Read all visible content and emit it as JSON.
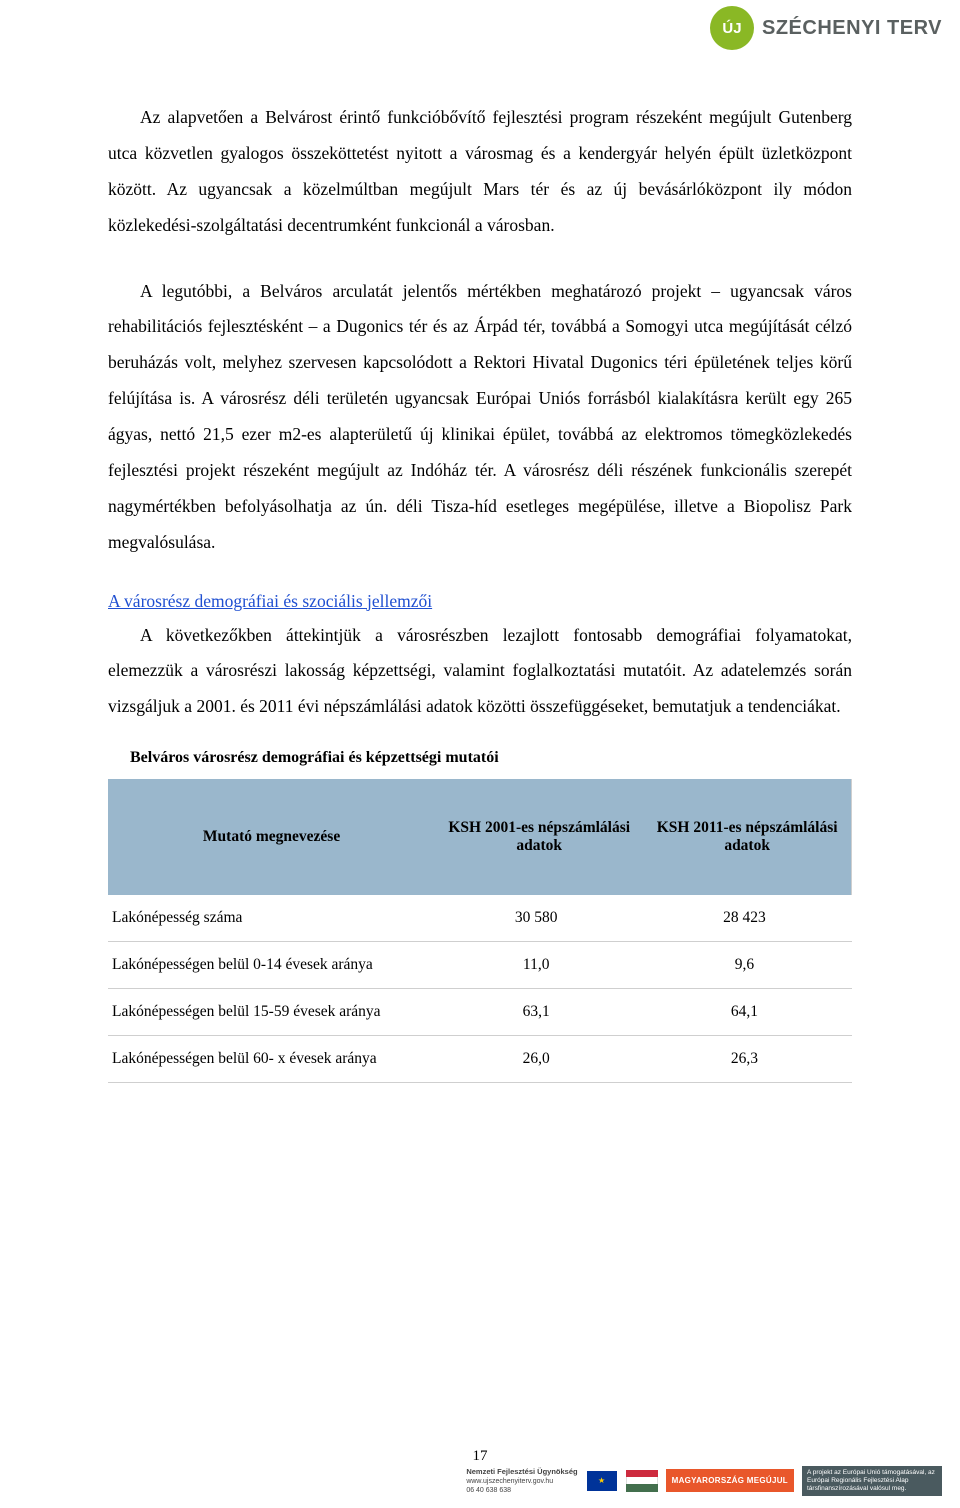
{
  "logo": {
    "badge_text": "ÚJ",
    "brand_text": "SZÉCHENYI TERV"
  },
  "paragraphs": {
    "p1": "Az alapvetően a Belvárost érintő funkcióbővítő fejlesztési program részeként megújult Gutenberg utca közvetlen gyalogos összeköttetést nyitott a városmag és a kendergyár helyén épült üzletközpont között. Az ugyancsak a közelmúltban megújult Mars tér és az új bevásárlóközpont ily módon közlekedési-szolgáltatási decentrumként funkcionál a városban.",
    "p2": "A legutóbbi, a Belváros arculatát jelentős mértékben meghatározó projekt – ugyancsak város rehabilitációs fejlesztésként – a Dugonics tér és az Árpád tér, továbbá a Somogyi utca megújítását célzó beruházás volt, melyhez szervesen kapcsolódott a Rektori Hivatal Dugonics téri épületének teljes körű felújítása is. A városrész déli területén ugyancsak Európai Uniós forrásból kialakításra került egy 265 ágyas, nettó 21,5 ezer m2-es alapterületű új klinikai épület, továbbá az elektromos tömegközlekedés fejlesztési projekt részeként megújult az Indóház tér. A városrész déli részének funkcionális szerepét nagymértékben befolyásolhatja az ún. déli Tisza-híd esetleges megépülése, illetve a Biopolisz Park megvalósulása."
  },
  "section_heading": "A városrész demográfiai és szociális jellemzői",
  "paragraph_after_heading": "A következőkben áttekintjük a városrészben lezajlott fontosabb demográfiai folyamatokat, elemezzük a városrészi lakosság képzettségi, valamint foglalkoztatási mutatóit. Az adatelemzés során vizsgáljuk a 2001. és 2011 évi népszámlálási adatok közötti összefüggéseket, bemutatjuk a tendenciákat.",
  "table": {
    "title": "Belváros városrész demográfiai és képzettségi mutatói",
    "header_bg": "#9ab7cc",
    "border_color": "#cfcfcf",
    "columns": [
      "Mutató megnevezése",
      "KSH 2001-es népszámlálási adatok",
      "KSH 2011-es népszámlálási adatok"
    ],
    "rows": [
      [
        "Lakónépesség száma",
        "30 580",
        "28 423"
      ],
      [
        "Lakónépességen belül 0-14 évesek aránya",
        "11,0",
        "9,6"
      ],
      [
        "Lakónépességen belül 15-59 évesek aránya",
        "63,1",
        "64,1"
      ],
      [
        "Lakónépességen belül 60- x évesek aránya",
        "26,0",
        "26,3"
      ]
    ]
  },
  "page_number": "17",
  "footer": {
    "agency_line1": "Nemzeti Fejlesztési Ügynökség",
    "agency_line2": "www.ujszechenyiterv.gov.hu",
    "agency_line3": "06 40 638 638",
    "mo_badge": "MAGYARORSZÁG MEGÚJUL",
    "eu_text": "A projekt az Európai Unió támogatásával, az Európai Regionális Fejlesztési Alap társfinanszírozásával valósul meg."
  }
}
